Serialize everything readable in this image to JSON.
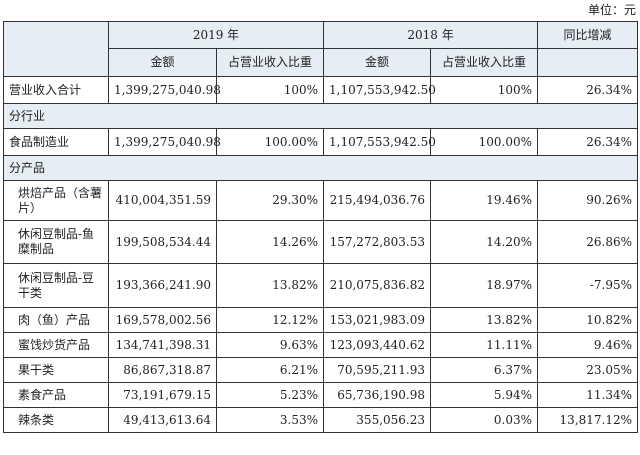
{
  "unit_label": "单位：元",
  "header": {
    "year_2019": "2019 年",
    "year_2018": "2018 年",
    "yoy": "同比增减",
    "amount": "金额",
    "share": "占营业收入比重"
  },
  "total": {
    "name": "营业收入合计",
    "amt_2019": "1,399,275,040.98",
    "pct_2019": "100%",
    "amt_2018": "1,107,553,942.50",
    "pct_2018": "100%",
    "yoy": "26.34%"
  },
  "section_industry": "分行业",
  "industry_rows": [
    {
      "name": "食品制造业",
      "amt_2019": "1,399,275,040.98",
      "pct_2019": "100.00%",
      "amt_2018": "1,107,553,942.50",
      "pct_2018": "100.00%",
      "yoy": "26.34%"
    }
  ],
  "section_product": "分产品",
  "product_rows": [
    {
      "name": "烘焙产品（含薯片）",
      "amt_2019": "410,004,351.59",
      "pct_2019": "29.30%",
      "amt_2018": "215,494,036.76",
      "pct_2018": "19.46%",
      "yoy": "90.26%"
    },
    {
      "name": "休闲豆制品-鱼糜制品",
      "amt_2019": "199,508,534.44",
      "pct_2019": "14.26%",
      "amt_2018": "157,272,803.53",
      "pct_2018": "14.20%",
      "yoy": "26.86%"
    },
    {
      "name": "休闲豆制品-豆干类",
      "amt_2019": "193,366,241.90",
      "pct_2019": "13.82%",
      "amt_2018": "210,075,836.82",
      "pct_2018": "18.97%",
      "yoy": "-7.95%"
    },
    {
      "name": "肉（鱼）产品",
      "amt_2019": "169,578,002.56",
      "pct_2019": "12.12%",
      "amt_2018": "153,021,983.09",
      "pct_2018": "13.82%",
      "yoy": "10.82%"
    },
    {
      "name": "蜜饯炒货产品",
      "amt_2019": "134,741,398.31",
      "pct_2019": "9.63%",
      "amt_2018": "123,093,440.62",
      "pct_2018": "11.11%",
      "yoy": "9.46%"
    },
    {
      "name": "果干类",
      "amt_2019": "86,867,318.87",
      "pct_2019": "6.21%",
      "amt_2018": "70,595,211.93",
      "pct_2018": "6.37%",
      "yoy": "23.05%"
    },
    {
      "name": "素食产品",
      "amt_2019": "73,191,679.15",
      "pct_2019": "5.23%",
      "amt_2018": "65,736,190.98",
      "pct_2018": "5.94%",
      "yoy": "11.34%"
    },
    {
      "name": "辣条类",
      "amt_2019": "49,413,613.64",
      "pct_2019": "3.53%",
      "amt_2018": "355,056.23",
      "pct_2018": "0.03%",
      "yoy": "13,817.12%"
    }
  ]
}
